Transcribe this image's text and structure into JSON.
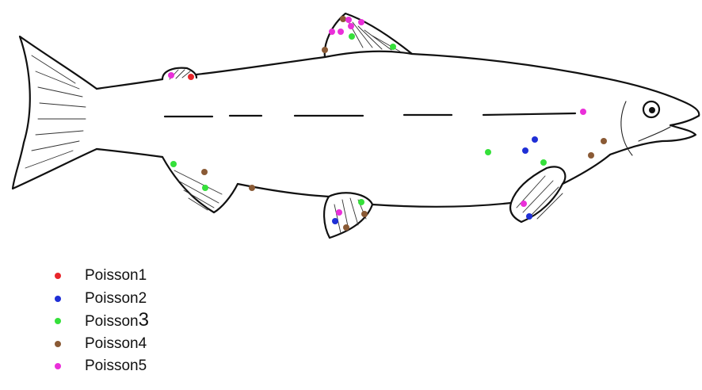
{
  "legend": [
    {
      "prefix": "Poisson",
      "suffix": "1",
      "color": "#e8262b"
    },
    {
      "prefix": "Poisson",
      "suffix": "2",
      "color": "#1f2fd6"
    },
    {
      "prefix": "Poisson",
      "suffix": "3",
      "color": "#35e03a"
    },
    {
      "prefix": "Poisson",
      "suffix": "4",
      "color": "#8a5a35"
    },
    {
      "prefix": "Poisson",
      "suffix": "5",
      "color": "#ea2fd9"
    }
  ],
  "markers": {
    "poisson1": [
      [
        241,
        97
      ]
    ],
    "poisson2": [
      [
        675,
        176
      ],
      [
        663,
        190
      ],
      [
        668,
        273
      ],
      [
        423,
        279
      ]
    ],
    "poisson3": [
      [
        444,
        46
      ],
      [
        496,
        59
      ],
      [
        616,
        192
      ],
      [
        686,
        205
      ],
      [
        219,
        207
      ],
      [
        259,
        237
      ],
      [
        456,
        255
      ]
    ],
    "poisson4": [
      [
        433,
        24
      ],
      [
        410,
        63
      ],
      [
        762,
        178
      ],
      [
        746,
        196
      ],
      [
        258,
        217
      ],
      [
        318,
        237
      ],
      [
        460,
        270
      ],
      [
        437,
        287
      ]
    ],
    "poisson5": [
      [
        440,
        25
      ],
      [
        456,
        28
      ],
      [
        419,
        40
      ],
      [
        430,
        40
      ],
      [
        443,
        33
      ],
      [
        216,
        95
      ],
      [
        736,
        141
      ],
      [
        661,
        257
      ],
      [
        428,
        268
      ]
    ]
  }
}
